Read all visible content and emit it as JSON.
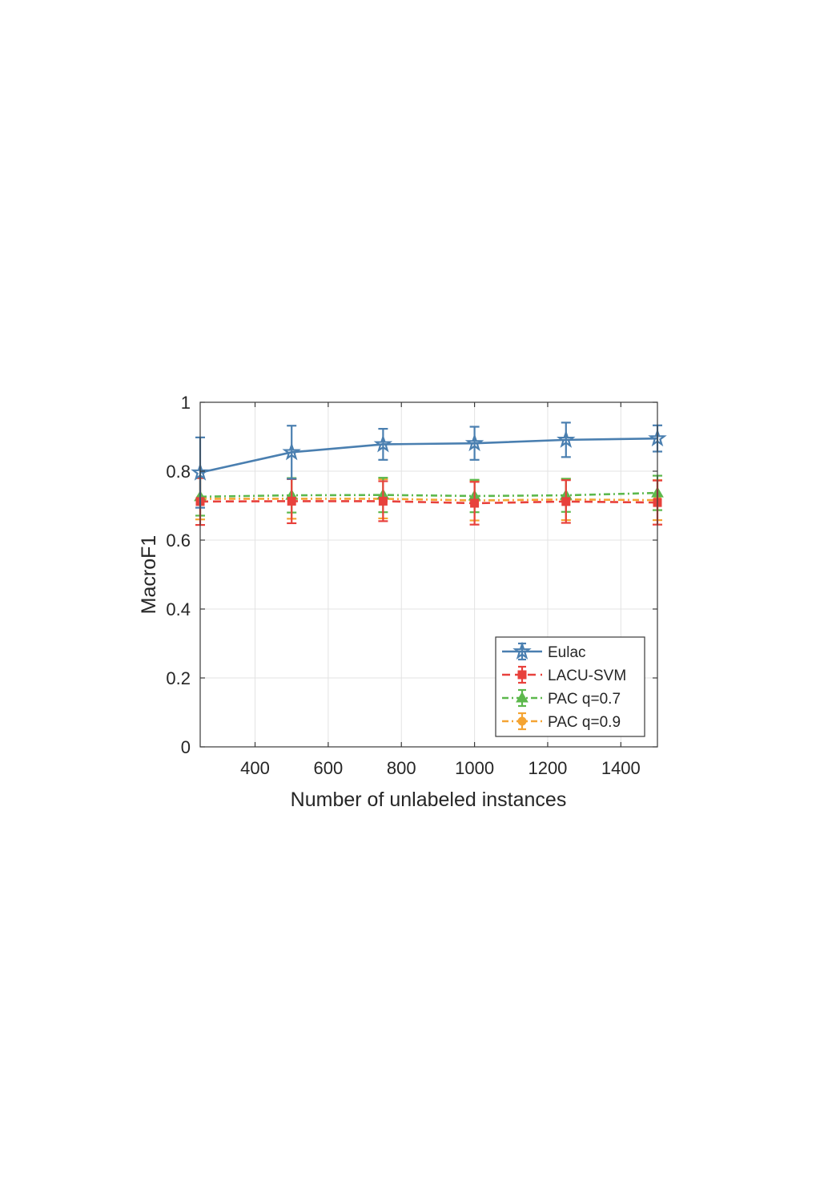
{
  "chart_data": {
    "type": "line",
    "title": "",
    "xlabel": "Number of unlabeled instances",
    "ylabel": "MacroF1",
    "xlim": [
      250,
      1500
    ],
    "ylim": [
      0,
      1
    ],
    "xticks": [
      400,
      600,
      800,
      1000,
      1200,
      1400
    ],
    "yticks": [
      0,
      0.2,
      0.4,
      0.6,
      0.8,
      1
    ],
    "xtick_labels": [
      "400",
      "600",
      "800",
      "1000",
      "1200",
      "1400"
    ],
    "ytick_labels": [
      "0",
      "0.2",
      "0.4",
      "0.6",
      "0.8",
      "1"
    ],
    "grid": true,
    "legend_position": "bottom-right",
    "x": [
      250,
      500,
      750,
      1000,
      1250,
      1500
    ],
    "series": [
      {
        "name": "Eulac",
        "color": "#4a7fb0",
        "marker": "star",
        "line_style": "solid",
        "values": [
          0.796,
          0.855,
          0.878,
          0.881,
          0.891,
          0.895
        ],
        "error": [
          0.102,
          0.077,
          0.045,
          0.048,
          0.05,
          0.038
        ]
      },
      {
        "name": "LACU-SVM",
        "color": "#e8413c",
        "marker": "square",
        "line_style": "dashed",
        "values": [
          0.712,
          0.713,
          0.713,
          0.707,
          0.712,
          0.709
        ],
        "error": [
          0.068,
          0.064,
          0.058,
          0.062,
          0.062,
          0.064
        ]
      },
      {
        "name": "PAC q=0.7",
        "color": "#5cb84c",
        "marker": "triangle",
        "line_style": "dash-dot",
        "values": [
          0.726,
          0.73,
          0.731,
          0.728,
          0.73,
          0.737
        ],
        "error": [
          0.055,
          0.05,
          0.05,
          0.047,
          0.048,
          0.05
        ]
      },
      {
        "name": "PAC q=0.9",
        "color": "#f4a433",
        "marker": "circle",
        "line_style": "dash-dot",
        "values": [
          0.72,
          0.72,
          0.72,
          0.715,
          0.718,
          0.716
        ],
        "error": [
          0.06,
          0.058,
          0.057,
          0.058,
          0.06,
          0.058
        ]
      }
    ]
  }
}
